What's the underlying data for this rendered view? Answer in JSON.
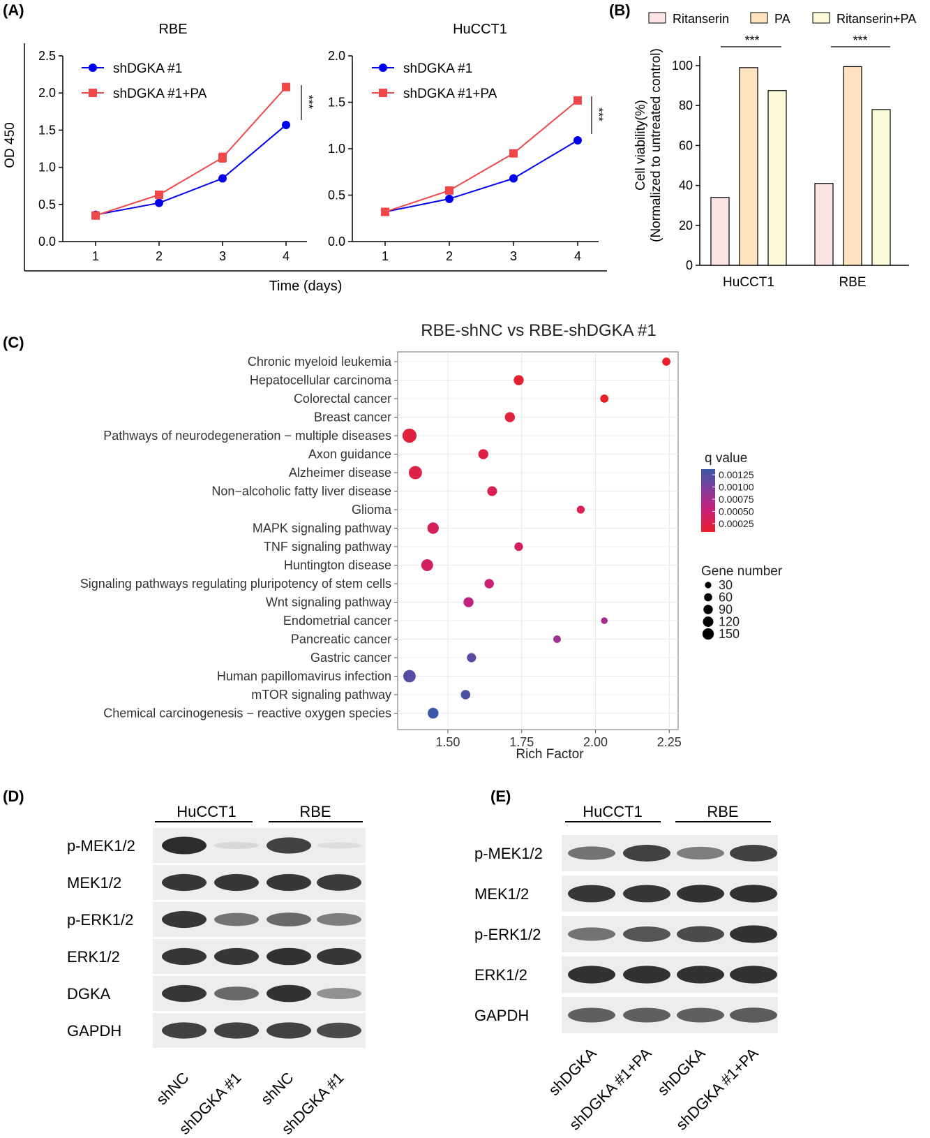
{
  "panels": {
    "A": "(A)",
    "B": "(B)",
    "C": "(C)",
    "D": "(D)",
    "E": "(E)"
  },
  "colors": {
    "blue": "#0000ee",
    "red": "#f04848",
    "ritanserin": "#fbe4e4",
    "pa": "#fde3c0",
    "ritanserin_pa": "#fdfadc",
    "q_high": "#3a57a8",
    "q_low": "#e8202a",
    "blot_bg": "#ededed",
    "band": "#222222"
  },
  "chart_data": [
    {
      "type": "line",
      "title": "RBE",
      "xlabel": "Time (days)",
      "ylabel": "OD 450",
      "x": [
        1,
        2,
        3,
        4
      ],
      "ylim": [
        0,
        2.5
      ],
      "yticks": [
        "0.0",
        "0.5",
        "1.0",
        "1.5",
        "2.0",
        "2.5"
      ],
      "series": [
        {
          "name": "shDGKA #1",
          "color": "#0000ee",
          "marker": "circle",
          "values": [
            0.36,
            0.52,
            0.85,
            1.57
          ]
        },
        {
          "name": "shDGKA #1+PA",
          "color": "#f04848",
          "marker": "square",
          "values": [
            0.35,
            0.63,
            1.13,
            2.08
          ],
          "errors": [
            0.02,
            0.02,
            0.06,
            0.02
          ]
        }
      ],
      "significance": "***"
    },
    {
      "type": "line",
      "title": "HuCCT1",
      "x": [
        1,
        2,
        3,
        4
      ],
      "ylim": [
        0,
        2.0
      ],
      "yticks": [
        "0.0",
        "0.5",
        "1.0",
        "1.5",
        "2.0"
      ],
      "series": [
        {
          "name": "shDGKA #1",
          "color": "#0000ee",
          "marker": "circle",
          "values": [
            0.32,
            0.46,
            0.68,
            1.09
          ]
        },
        {
          "name": "shDGKA #1+PA",
          "color": "#f04848",
          "marker": "square",
          "values": [
            0.32,
            0.55,
            0.95,
            1.52
          ]
        }
      ],
      "significance": "***"
    },
    {
      "type": "bar",
      "ylabel_lines": [
        "Cell viability(%)",
        "(Normalized to untreated control)"
      ],
      "categories": [
        "HuCCT1",
        "RBE"
      ],
      "ylim": [
        0,
        100
      ],
      "yticks": [
        "0",
        "20",
        "40",
        "60",
        "80",
        "100"
      ],
      "series": [
        {
          "name": "Ritanserin",
          "color": "#fbe4e4",
          "values": [
            34,
            41
          ]
        },
        {
          "name": "PA",
          "color": "#fde3c0",
          "values": [
            99,
            99.5
          ]
        },
        {
          "name": "Ritanserin+PA",
          "color": "#fdfadc",
          "values": [
            87.5,
            78
          ]
        }
      ],
      "significance": [
        "***",
        "***"
      ]
    },
    {
      "type": "scatter",
      "title": "RBE-shNC vs RBE-shDGKA #1",
      "xlabel": "Rich Factor",
      "xlim": [
        1.33,
        2.28
      ],
      "xticks": [
        1.5,
        1.75,
        2.0,
        2.25
      ],
      "xtick_labels": [
        "1.50",
        "1.75",
        "2.00",
        "2.25"
      ],
      "categories": [
        "Chronic myeloid leukemia",
        "Hepatocellular carcinoma",
        "Colorectal cancer",
        "Breast cancer",
        "Pathways of neurodegeneration − multiple diseases",
        "Axon guidance",
        "Alzheimer disease",
        "Non−alcoholic fatty liver disease",
        "Glioma",
        "MAPK signaling pathway",
        "TNF signaling pathway",
        "Huntington disease",
        "Signaling pathways regulating pluripotency of stem cells",
        "Wnt signaling pathway",
        "Endometrial cancer",
        "Pancreatic cancer",
        "Gastric cancer",
        "Human papillomavirus infection",
        "mTOR signaling pathway",
        "Chemical carcinogenesis − reactive oxygen species"
      ],
      "points": [
        {
          "x": 2.24,
          "gene_number": 40,
          "q": 0.0001
        },
        {
          "x": 1.74,
          "gene_number": 70,
          "q": 0.00015
        },
        {
          "x": 2.03,
          "gene_number": 40,
          "q": 0.0001
        },
        {
          "x": 1.71,
          "gene_number": 70,
          "q": 0.0002
        },
        {
          "x": 1.37,
          "gene_number": 170,
          "q": 0.0002
        },
        {
          "x": 1.62,
          "gene_number": 70,
          "q": 0.00025
        },
        {
          "x": 1.39,
          "gene_number": 145,
          "q": 0.00025
        },
        {
          "x": 1.65,
          "gene_number": 65,
          "q": 0.0003
        },
        {
          "x": 1.95,
          "gene_number": 35,
          "q": 0.0003
        },
        {
          "x": 1.45,
          "gene_number": 100,
          "q": 0.00035
        },
        {
          "x": 1.74,
          "gene_number": 45,
          "q": 0.0004
        },
        {
          "x": 1.43,
          "gene_number": 110,
          "q": 0.0004
        },
        {
          "x": 1.64,
          "gene_number": 60,
          "q": 0.0005
        },
        {
          "x": 1.57,
          "gene_number": 70,
          "q": 0.0006
        },
        {
          "x": 2.03,
          "gene_number": 20,
          "q": 0.00075
        },
        {
          "x": 1.87,
          "gene_number": 30,
          "q": 0.0008
        },
        {
          "x": 1.58,
          "gene_number": 55,
          "q": 0.0012
        },
        {
          "x": 1.37,
          "gene_number": 125,
          "q": 0.00125
        },
        {
          "x": 1.56,
          "gene_number": 60,
          "q": 0.0013
        },
        {
          "x": 1.45,
          "gene_number": 85,
          "q": 0.0014
        }
      ],
      "legend_q_title": "q value",
      "legend_q_labels": [
        "0.00125",
        "0.00100",
        "0.00075",
        "0.00050",
        "0.00025"
      ],
      "legend_size_title": "Gene number",
      "legend_size_labels": [
        "30",
        "60",
        "90",
        "120",
        "150"
      ],
      "legend_size_values": [
        30,
        60,
        90,
        120,
        150
      ]
    }
  ],
  "blot_D": {
    "groups": [
      "HuCCT1",
      "RBE"
    ],
    "rows": [
      "p-MEK1/2",
      "MEK1/2",
      "p-ERK1/2",
      "ERK1/2",
      "DGKA",
      "GAPDH"
    ],
    "lanes": [
      "shNC",
      "shDGKA #1",
      "shNC",
      "shDGKA #1"
    ],
    "band_intensity": [
      [
        0.95,
        0.1,
        0.85,
        0.05
      ],
      [
        0.9,
        0.9,
        0.9,
        0.88
      ],
      [
        0.9,
        0.6,
        0.65,
        0.55
      ],
      [
        0.9,
        0.9,
        0.92,
        0.9
      ],
      [
        0.9,
        0.65,
        0.92,
        0.45
      ],
      [
        0.85,
        0.85,
        0.85,
        0.8
      ]
    ]
  },
  "blot_E": {
    "groups": [
      "HuCCT1",
      "RBE"
    ],
    "rows": [
      "p-MEK1/2",
      "MEK1/2",
      "p-ERK1/2",
      "ERK1/2",
      "GAPDH"
    ],
    "lanes": [
      "shDGKA",
      "shDGKA #1+PA",
      "shDGKA",
      "shDGKA #1+PA"
    ],
    "band_intensity": [
      [
        0.6,
        0.85,
        0.55,
        0.85
      ],
      [
        0.9,
        0.9,
        0.92,
        0.92
      ],
      [
        0.6,
        0.75,
        0.8,
        0.92
      ],
      [
        0.92,
        0.92,
        0.92,
        0.92
      ],
      [
        0.7,
        0.7,
        0.7,
        0.72
      ]
    ]
  }
}
